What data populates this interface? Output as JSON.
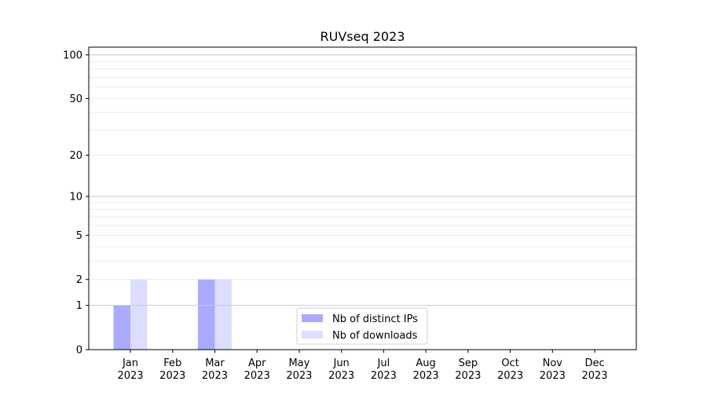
{
  "chart_data": {
    "type": "bar",
    "title": "RUVseq 2023",
    "xlabel": "",
    "ylabel": "",
    "y_scale": "log(1+y)",
    "ylim": [
      0,
      113
    ],
    "yticks": [
      0,
      1,
      2,
      5,
      10,
      20,
      50,
      100
    ],
    "ytick_labels": [
      "0",
      "1",
      "2",
      "5",
      "10",
      "20",
      "50",
      "100"
    ],
    "grid": true,
    "legend_position": "lower-center",
    "categories": [
      "Jan\n2023",
      "Feb\n2023",
      "Mar\n2023",
      "Apr\n2023",
      "May\n2023",
      "Jun\n2023",
      "Jul\n2023",
      "Aug\n2023",
      "Sep\n2023",
      "Oct\n2023",
      "Nov\n2023",
      "Dec\n2023"
    ],
    "category_labels": [
      [
        "Jan",
        "2023"
      ],
      [
        "Feb",
        "2023"
      ],
      [
        "Mar",
        "2023"
      ],
      [
        "Apr",
        "2023"
      ],
      [
        "May",
        "2023"
      ],
      [
        "Jun",
        "2023"
      ],
      [
        "Jul",
        "2023"
      ],
      [
        "Aug",
        "2023"
      ],
      [
        "Sep",
        "2023"
      ],
      [
        "Oct",
        "2023"
      ],
      [
        "Nov",
        "2023"
      ],
      [
        "Dec",
        "2023"
      ]
    ],
    "series": [
      {
        "name": "Nb of distinct IPs",
        "color": "#aaaaff",
        "values": [
          1,
          0,
          2,
          0,
          0,
          0,
          0,
          0,
          0,
          0,
          0,
          0
        ]
      },
      {
        "name": "Nb of downloads",
        "color": "#ddddff",
        "values": [
          2,
          0,
          2,
          0,
          0,
          0,
          0,
          0,
          0,
          0,
          0,
          0
        ]
      }
    ]
  }
}
